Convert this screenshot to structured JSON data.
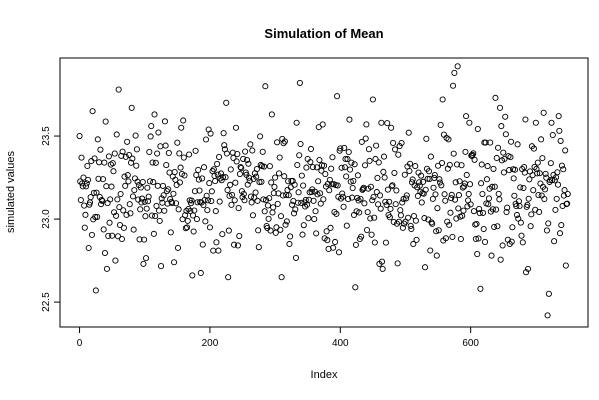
{
  "chart_data": {
    "type": "scatter",
    "title": "Simulation of Mean",
    "xlabel": "Index",
    "ylabel": "simulated values",
    "x_ticks": [
      0,
      200,
      400,
      600
    ],
    "y_ticks": [
      22.5,
      23.0,
      23.5
    ],
    "y_tick_labels": [
      "22.5",
      "23.0",
      "23.5"
    ],
    "xlim": [
      -30,
      780
    ],
    "ylim": [
      22.35,
      23.97
    ],
    "n_points": 750,
    "grid": false,
    "marker": "open-circle",
    "series": [
      {
        "marker_color": "#000000",
        "sample": [
          [
            0,
            23.5
          ],
          [
            3,
            23.37
          ],
          [
            6,
            23.25
          ],
          [
            12,
            23.32
          ],
          [
            16,
            23.1
          ],
          [
            20,
            23.65
          ],
          [
            25,
            22.57
          ],
          [
            28,
            23.48
          ],
          [
            38,
            23.34
          ],
          [
            42,
            22.7
          ],
          [
            50,
            22.9
          ],
          [
            55,
            22.75
          ],
          [
            60,
            23.78
          ],
          [
            65,
            22.88
          ],
          [
            70,
            23.2
          ],
          [
            80,
            23.67
          ],
          [
            88,
            23.42
          ],
          [
            95,
            23.1
          ],
          [
            98,
            22.73
          ],
          [
            110,
            23.56
          ],
          [
            115,
            23.63
          ],
          [
            120,
            23.2
          ],
          [
            130,
            23.05
          ],
          [
            138,
            23.28
          ],
          [
            145,
            22.74
          ],
          [
            150,
            23.46
          ],
          [
            156,
            23.55
          ],
          [
            165,
            22.95
          ],
          [
            180,
            23.0
          ],
          [
            195,
            23.14
          ],
          [
            200,
            22.95
          ],
          [
            205,
            22.81
          ],
          [
            210,
            22.86
          ],
          [
            225,
            23.7
          ],
          [
            228,
            22.65
          ],
          [
            235,
            23.4
          ],
          [
            240,
            23.55
          ],
          [
            255,
            23.28
          ],
          [
            262,
            23.45
          ],
          [
            270,
            23.16
          ],
          [
            285,
            23.8
          ],
          [
            295,
            23.63
          ],
          [
            300,
            23.25
          ],
          [
            310,
            22.65
          ],
          [
            322,
            22.85
          ],
          [
            333,
            23.58
          ],
          [
            338,
            23.82
          ],
          [
            345,
            23.1
          ],
          [
            360,
            23.0
          ],
          [
            373,
            23.57
          ],
          [
            382,
            22.82
          ],
          [
            390,
            23.21
          ],
          [
            395,
            23.74
          ],
          [
            398,
            22.8
          ],
          [
            410,
            22.96
          ],
          [
            422,
            23.33
          ],
          [
            430,
            22.88
          ],
          [
            440,
            23.57
          ],
          [
            450,
            23.72
          ],
          [
            460,
            22.73
          ],
          [
            465,
            22.7
          ],
          [
            478,
            23.55
          ],
          [
            485,
            23.09
          ],
          [
            495,
            23.1
          ],
          [
            505,
            23.52
          ],
          [
            512,
            22.85
          ],
          [
            520,
            23.28
          ],
          [
            525,
            23.1
          ],
          [
            530,
            22.71
          ],
          [
            540,
            22.98
          ],
          [
            548,
            22.78
          ],
          [
            552,
            23.24
          ],
          [
            557,
            23.72
          ],
          [
            566,
            23.48
          ],
          [
            575,
            23.88
          ],
          [
            580,
            23.92
          ],
          [
            585,
            22.88
          ],
          [
            593,
            23.62
          ],
          [
            598,
            23.58
          ],
          [
            615,
            22.58
          ],
          [
            620,
            22.94
          ],
          [
            625,
            23.24
          ],
          [
            632,
            22.78
          ],
          [
            638,
            23.73
          ],
          [
            645,
            23.67
          ],
          [
            650,
            23.4
          ],
          [
            660,
            22.85
          ],
          [
            665,
            23.3
          ],
          [
            672,
            23.45
          ],
          [
            678,
            22.9
          ],
          [
            685,
            22.68
          ],
          [
            688,
            22.7
          ],
          [
            700,
            23.58
          ],
          [
            708,
            23.48
          ],
          [
            712,
            23.64
          ],
          [
            718,
            22.42
          ],
          [
            720,
            22.55
          ],
          [
            724,
            23.58
          ],
          [
            735,
            23.62
          ],
          [
            742,
            23.3
          ],
          [
            746,
            22.72
          ]
        ]
      }
    ]
  }
}
